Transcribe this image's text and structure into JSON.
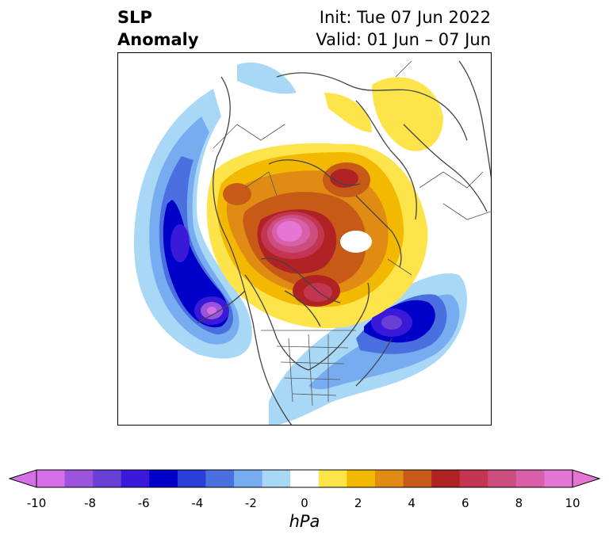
{
  "title": {
    "left_line1": "SLP",
    "left_line2": "Anomaly",
    "right_line1": "Init: Tue 07 Jun 2022",
    "right_line2": "Valid: 01 Jun – 07 Jun"
  },
  "colorbar": {
    "unit_label": "hPa",
    "tick_labels": [
      "-10",
      "-8",
      "-6",
      "-4",
      "-2",
      "0",
      "2",
      "4",
      "6",
      "8",
      "10"
    ],
    "colors": [
      "#d670e8",
      "#9b55dd",
      "#6a3fd6",
      "#3a1ad8",
      "#0000c8",
      "#2a3fd8",
      "#4a70e0",
      "#78acf0",
      "#a9d8f7",
      "#ffffff",
      "#fde44a",
      "#f2b900",
      "#e08c14",
      "#c85a18",
      "#b02224",
      "#c33550",
      "#cc4e7e",
      "#d960a8",
      "#e676d6"
    ],
    "extend_low_color": "#d670e8",
    "extend_high_color": "#e676d6"
  }
}
